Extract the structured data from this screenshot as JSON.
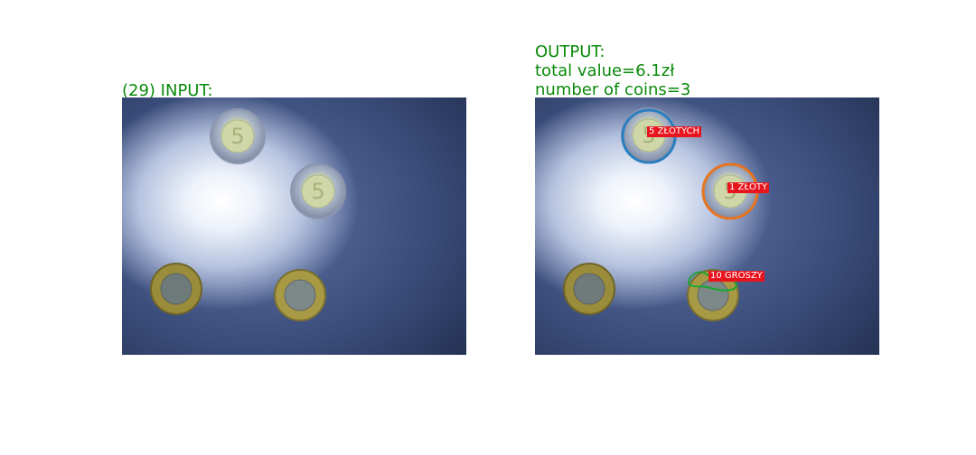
{
  "input_label": "(29) INPUT:",
  "output": {
    "title": "OUTPUT:",
    "total_value": "total value=6.1zł",
    "coin_count": "number of coins=3"
  },
  "detections": [
    {
      "label": "5 ZŁOTYCH",
      "outline_color": "#2a7fc0"
    },
    {
      "label": "1 ZŁOTY",
      "outline_color": "#e8741e"
    },
    {
      "label": "10 GROSZY",
      "outline_color": "#19a832"
    }
  ],
  "colors": {
    "label_green": "#0a8a0a",
    "tag_red": "#e8141e"
  }
}
